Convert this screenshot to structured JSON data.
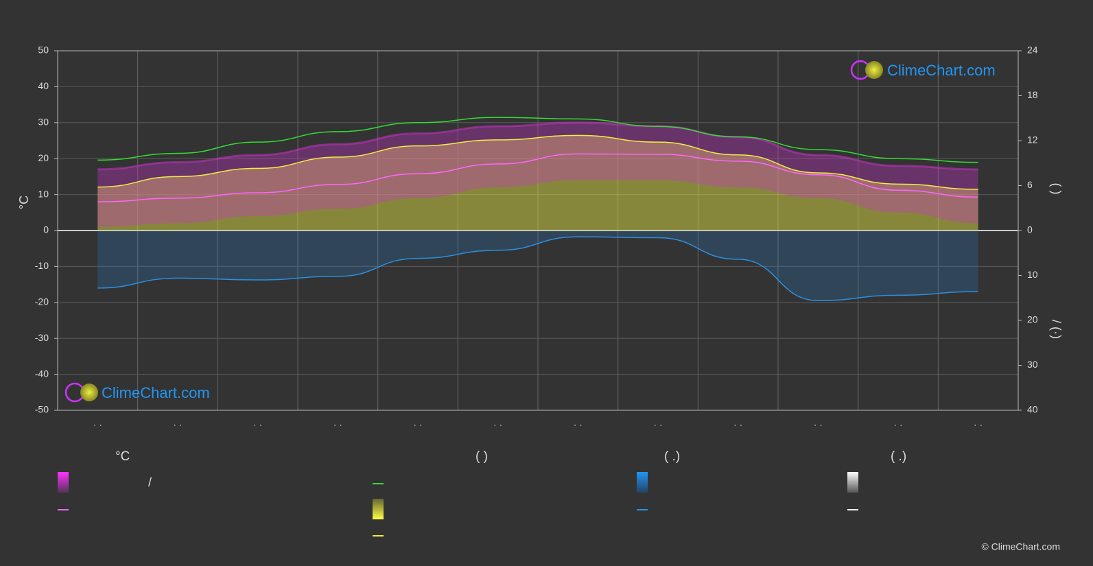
{
  "chart_data": {
    "type": "line",
    "ylabel": "°C",
    "y2label": "(          )",
    "y3label": "/      (·)",
    "categories": [
      "· ·",
      "· ·",
      "· ·",
      "· ·",
      "· ·",
      "· ·",
      "· ·",
      "· ·",
      "· ·",
      "· ·",
      "· ·",
      "· ·"
    ],
    "ylim": [
      -50,
      50
    ],
    "yticks": [
      -50,
      -40,
      -30,
      -20,
      -10,
      0,
      10,
      20,
      30,
      40,
      50
    ],
    "y2lim": [
      0,
      24
    ],
    "y2ticks": [
      0,
      6,
      12,
      18,
      24
    ],
    "y3lim": [
      0,
      40
    ],
    "y3ticks": [
      0,
      10,
      20,
      30,
      40
    ],
    "grid": true,
    "series": [
      {
        "color": "#cc33cc",
        "values": [
          17,
          19,
          21,
          24,
          27,
          29,
          30,
          29,
          26,
          21,
          18,
          17
        ],
        "axis": "y",
        "kind": "band-top"
      },
      {
        "color": "#cc33cc",
        "values": [
          1,
          2,
          4,
          6,
          9,
          12,
          14,
          14,
          12,
          9,
          5,
          2
        ],
        "axis": "y",
        "kind": "band-bottom"
      },
      {
        "color": "#ff66ff",
        "values": [
          8,
          9,
          10.5,
          12.8,
          15.8,
          18.5,
          21.3,
          21.2,
          19.3,
          15.5,
          11.2,
          9.3
        ],
        "axis": "y",
        "kind": "line"
      },
      {
        "color": "#33dd33",
        "values": [
          9.4,
          10.3,
          11.8,
          13.2,
          14.4,
          15.1,
          14.9,
          13.9,
          12.5,
          10.8,
          9.6,
          9.1
        ],
        "axis": "y2",
        "kind": "line"
      },
      {
        "color": "#eeee44",
        "values": [
          5.8,
          7.2,
          8.3,
          9.8,
          11.3,
          12.1,
          12.7,
          11.8,
          10.1,
          7.7,
          6.2,
          5.5
        ],
        "axis": "y2",
        "kind": "area-line"
      },
      {
        "color": "#2b8fe0",
        "values": [
          12.8,
          10.6,
          11,
          10.2,
          6.2,
          4.4,
          1.4,
          1.6,
          6.4,
          15.6,
          14.4,
          13.6
        ],
        "axis": "y3",
        "kind": "area-line"
      }
    ],
    "legend": {
      "headers": [
        "°C",
        "(          )",
        "(   .)",
        "(   .)"
      ],
      "slash": "/"
    },
    "watermark": "ClimeChart.com",
    "copyright": "© ClimeChart.com"
  }
}
